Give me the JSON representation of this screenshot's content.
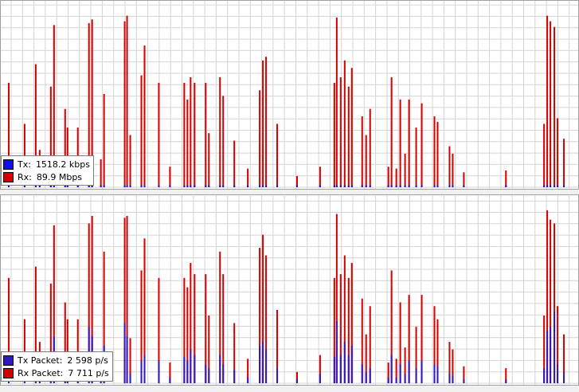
{
  "chart_data": [
    {
      "type": "bar",
      "xlim": [
        0,
        727
      ],
      "ylim": [
        0,
        100
      ],
      "grid": true,
      "x": [
        10,
        30,
        44,
        49,
        63,
        67,
        81,
        84,
        97,
        111,
        115,
        126,
        130,
        156,
        159,
        163,
        177,
        181,
        199,
        213,
        231,
        235,
        239,
        244,
        258,
        262,
        276,
        280,
        294,
        311,
        326,
        330,
        334,
        348,
        373,
        402,
        420,
        423,
        428,
        433,
        438,
        442,
        455,
        460,
        465,
        488,
        492,
        498,
        503,
        509,
        514,
        523,
        530,
        546,
        550,
        565,
        569,
        583,
        636,
        684,
        688,
        692,
        697,
        701,
        709
      ],
      "series": [
        {
          "name": "Rx:",
          "legend_value": "89.9 Mbps",
          "color": "#d40000",
          "values": [
            56,
            34,
            66,
            20,
            54,
            87,
            42,
            32,
            32,
            88,
            90,
            15,
            50,
            89,
            92,
            28,
            60,
            76,
            56,
            11,
            56,
            47,
            59,
            56,
            56,
            29,
            59,
            49,
            25,
            10,
            52,
            68,
            70,
            34,
            6,
            11,
            56,
            91,
            59,
            68,
            54,
            64,
            38,
            28,
            42,
            11,
            59,
            10,
            47,
            18,
            47,
            32,
            45,
            38,
            35,
            22,
            18,
            8,
            9,
            34,
            92,
            89,
            86,
            37,
            26
          ]
        },
        {
          "name": "Tx:",
          "legend_value": "1518.2 kbps",
          "color": "#1010e0",
          "values": [
            1,
            1,
            1,
            1,
            1,
            1,
            1,
            1,
            1,
            1,
            1,
            1,
            1,
            1,
            1,
            1,
            1,
            1,
            1,
            1,
            1,
            1,
            1,
            1,
            1,
            1,
            1,
            1,
            1,
            1,
            1,
            1,
            1,
            1,
            1,
            1,
            1,
            1,
            1,
            1,
            1,
            1,
            1,
            1,
            1,
            1,
            1,
            1,
            1,
            1,
            1,
            1,
            1,
            1,
            1,
            1,
            1,
            1,
            1,
            1,
            1,
            1,
            1,
            1,
            1
          ]
        }
      ]
    },
    {
      "type": "bar",
      "xlim": [
        0,
        727
      ],
      "ylim": [
        0,
        100
      ],
      "grid": true,
      "x": [
        10,
        30,
        44,
        49,
        63,
        67,
        81,
        84,
        97,
        111,
        115,
        126,
        130,
        156,
        159,
        163,
        177,
        181,
        199,
        213,
        231,
        235,
        239,
        244,
        258,
        262,
        276,
        280,
        294,
        311,
        326,
        330,
        334,
        348,
        373,
        402,
        420,
        423,
        428,
        433,
        438,
        442,
        455,
        460,
        465,
        488,
        492,
        498,
        503,
        509,
        514,
        523,
        530,
        546,
        550,
        565,
        569,
        583,
        636,
        684,
        688,
        692,
        697,
        701,
        709
      ],
      "series": [
        {
          "name": "Rx Packet:",
          "legend_value": "7 711 p/s",
          "color": "#d40000",
          "values": [
            56,
            34,
            62,
            22,
            53,
            84,
            43,
            34,
            34,
            85,
            89,
            17,
            70,
            88,
            89,
            24,
            60,
            77,
            56,
            11,
            56,
            51,
            64,
            58,
            58,
            36,
            70,
            58,
            32,
            13,
            72,
            79,
            68,
            39,
            6,
            15,
            56,
            90,
            58,
            68,
            56,
            64,
            45,
            26,
            41,
            11,
            60,
            13,
            43,
            19,
            47,
            30,
            47,
            41,
            34,
            22,
            18,
            9,
            8,
            36,
            92,
            87,
            85,
            41,
            26
          ]
        },
        {
          "name": "Tx Packet:",
          "legend_value": "2 598 p/s",
          "color": "#3018c0",
          "values": [
            12,
            6,
            15,
            4,
            12,
            25,
            8,
            6,
            6,
            30,
            25,
            4,
            20,
            32,
            25,
            5,
            12,
            15,
            12,
            3,
            14,
            12,
            18,
            15,
            10,
            8,
            15,
            10,
            7,
            3,
            20,
            22,
            18,
            8,
            2,
            5,
            14,
            33,
            15,
            22,
            15,
            20,
            10,
            6,
            8,
            3,
            15,
            3,
            10,
            5,
            12,
            8,
            12,
            10,
            9,
            5,
            4,
            2,
            2,
            8,
            28,
            30,
            38,
            10,
            6
          ]
        }
      ]
    }
  ]
}
